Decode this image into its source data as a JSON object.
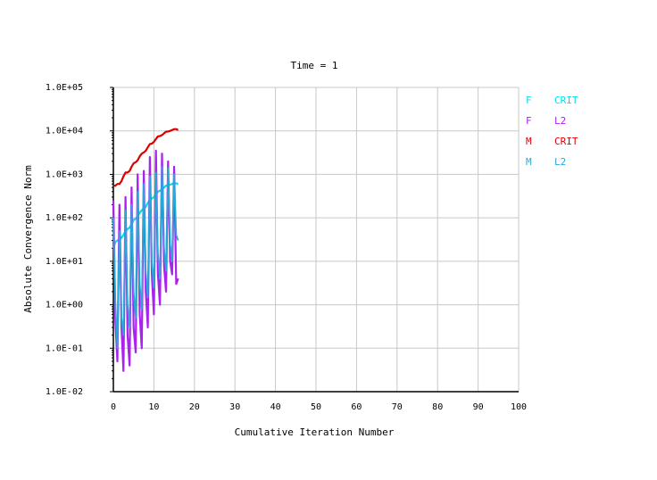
{
  "chart_data": {
    "type": "line",
    "title": "Time = 1",
    "xlabel": "Cumulative Iteration Number",
    "ylabel": "Absolute Convergence Norm",
    "xlim": [
      0,
      100
    ],
    "ylim": [
      0.01,
      100000
    ],
    "yscale": "log",
    "grid": true,
    "legend_position": "right",
    "x_ticks": [
      "0",
      "10",
      "20",
      "30",
      "40",
      "50",
      "60",
      "70",
      "80",
      "90",
      "100"
    ],
    "y_ticks": [
      "1.0E-02",
      "1.0E-01",
      "1.0E+00",
      "1.0E+01",
      "1.0E+02",
      "1.0E+03",
      "1.0E+04",
      "1.0E+05"
    ],
    "legend": [
      {
        "key": "F",
        "label": "CRIT",
        "color": "#00ddee"
      },
      {
        "key": "F",
        "label": "L2",
        "color": "#aa22ee"
      },
      {
        "key": "M",
        "label": "CRIT",
        "color": "#dd0000"
      },
      {
        "key": "M",
        "label": "L2",
        "color": "#2aa7d8"
      }
    ],
    "series": [
      {
        "name": "M CRIT",
        "color": "#dd0000",
        "width": 2.2,
        "x": [
          0,
          0.5,
          1,
          1.5,
          2,
          2.5,
          3,
          3.5,
          4,
          4.5,
          5,
          5.5,
          6,
          6.5,
          7,
          7.5,
          8,
          8.5,
          9,
          9.5,
          10,
          10.5,
          11,
          11.5,
          12,
          12.5,
          13,
          13.5,
          14,
          14.5,
          15,
          15.5,
          16
        ],
        "y": [
          550,
          550,
          600,
          600,
          700,
          900,
          1100,
          1100,
          1200,
          1500,
          1800,
          1900,
          2100,
          2600,
          3000,
          3200,
          3500,
          4200,
          5000,
          5100,
          5600,
          6500,
          7500,
          7600,
          8000,
          8800,
          9600,
          9700,
          10000,
          10500,
          11000,
          11000,
          10500
        ]
      },
      {
        "name": "F CRIT",
        "color": "#00ddee",
        "width": 2.2,
        "x": [
          0,
          0.5,
          1,
          1.5,
          2,
          2.5,
          3,
          3.5,
          4,
          4.5,
          5,
          5.5,
          6,
          6.5,
          7,
          7.5,
          8,
          8.5,
          9,
          9.5,
          10,
          10.5,
          11,
          11.5,
          12,
          12.5,
          13,
          13.5,
          14,
          14.5,
          15,
          15.5,
          16
        ],
        "y": [
          20,
          28,
          30,
          32,
          35,
          40,
          50,
          55,
          60,
          70,
          90,
          95,
          110,
          130,
          150,
          160,
          180,
          220,
          260,
          280,
          300,
          350,
          400,
          420,
          450,
          500,
          550,
          560,
          580,
          600,
          620,
          620,
          600
        ]
      },
      {
        "name": "F L2",
        "color": "#aa22ee",
        "width": 2.2,
        "x": [
          0,
          0.5,
          1,
          1.5,
          2,
          2.5,
          3,
          3.5,
          4,
          4.5,
          5,
          5.5,
          6,
          6.5,
          7,
          7.5,
          8,
          8.5,
          9,
          9.5,
          10,
          10.5,
          11,
          11.5,
          12,
          12.5,
          13,
          13.5,
          14,
          14.5,
          15,
          15.5,
          16
        ],
        "y": [
          250,
          0.4,
          0.05,
          200,
          0.3,
          0.03,
          300,
          0.2,
          0.04,
          500,
          0.3,
          0.08,
          1000,
          0.6,
          0.1,
          1200,
          2.0,
          0.3,
          2500,
          5.0,
          0.6,
          3500,
          5.0,
          1.0,
          3000,
          8.0,
          2.0,
          2000,
          10.0,
          5.0,
          1500,
          3.0,
          4.0
        ]
      },
      {
        "name": "M L2",
        "color": "#2aa7d8",
        "width": 1.8,
        "x": [
          0,
          0.5,
          1,
          1.5,
          2,
          2.5,
          3,
          3.5,
          4,
          4.5,
          5,
          5.5,
          6,
          6.5,
          7,
          7.5,
          8,
          8.5,
          9,
          9.5,
          10,
          10.5,
          11,
          11.5,
          12,
          12.5,
          13,
          13.5,
          14,
          14.5,
          15,
          15.5,
          16
        ],
        "y": [
          100,
          1.0,
          0.1,
          50,
          0.5,
          0.2,
          150,
          1.0,
          0.3,
          200,
          2.0,
          0.5,
          400,
          3.0,
          0.8,
          600,
          6.0,
          1.5,
          900,
          10.0,
          2.5,
          1100,
          15.0,
          4.0,
          1500,
          20.0,
          6.0,
          1400,
          25.0,
          10.0,
          1000,
          40.0,
          30.0
        ]
      }
    ]
  }
}
